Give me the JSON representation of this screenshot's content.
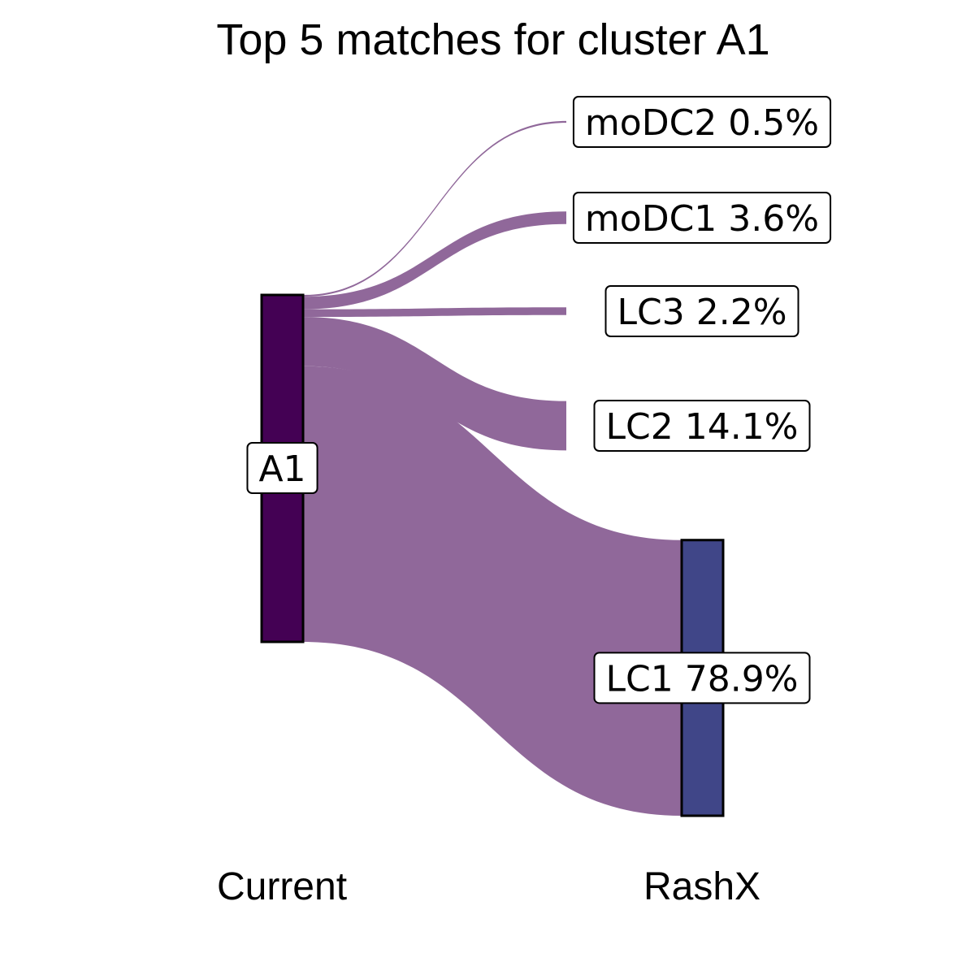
{
  "chart_data": {
    "type": "sankey",
    "title": "Top 5 matches for cluster A1",
    "axes": [
      "Current",
      "RashX"
    ],
    "source": {
      "name": "A1",
      "color": "#440154"
    },
    "flow_color": "#90689A",
    "target_color": "#404688",
    "targets": [
      {
        "name": "moDC2",
        "percent": 0.5,
        "label": "moDC2 0.5%"
      },
      {
        "name": "moDC1",
        "percent": 3.6,
        "label": "moDC1 3.6%"
      },
      {
        "name": "LC3",
        "percent": 2.2,
        "label": "LC3 2.2%"
      },
      {
        "name": "LC2",
        "percent": 14.1,
        "label": "LC2 14.1%"
      },
      {
        "name": "LC1",
        "percent": 78.9,
        "label": "LC1 78.9%",
        "node_shown": true
      }
    ]
  }
}
